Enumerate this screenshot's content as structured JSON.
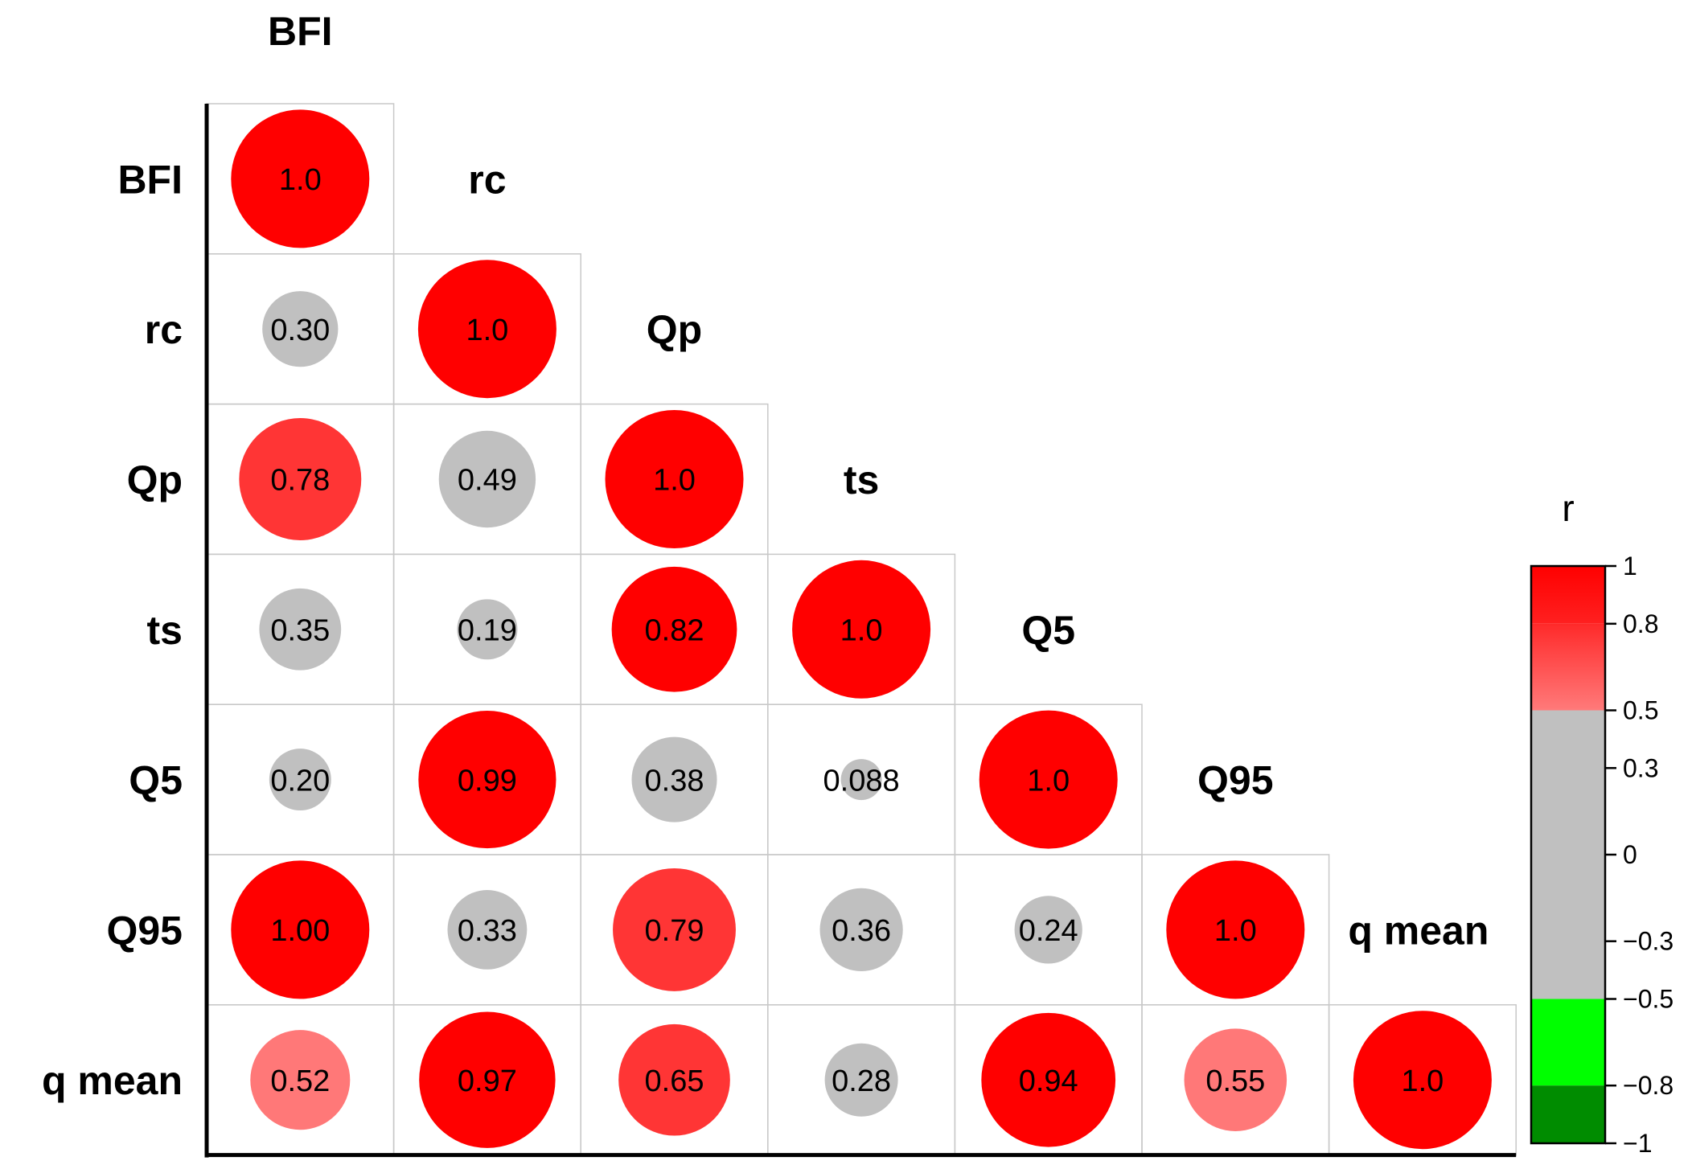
{
  "chart_data": {
    "type": "heatmap",
    "variables": [
      "BFI",
      "rc",
      "Qp",
      "ts",
      "Q5",
      "Q95",
      "q mean"
    ],
    "matrix_labels": [
      [
        "1.0"
      ],
      [
        "0.30",
        "1.0"
      ],
      [
        "0.78",
        "0.49",
        "1.0"
      ],
      [
        "0.35",
        "0.19",
        "0.82",
        "1.0"
      ],
      [
        "0.20",
        "0.99",
        "0.38",
        "0.088",
        "1.0"
      ],
      [
        "1.00",
        "0.33",
        "0.79",
        "0.36",
        "0.24",
        "1.0"
      ],
      [
        "0.52",
        "0.97",
        "0.65",
        "0.28",
        "0.94",
        "0.55",
        "1.0"
      ]
    ],
    "matrix_values": [
      [
        1.0
      ],
      [
        0.3,
        1.0
      ],
      [
        0.78,
        0.49,
        1.0
      ],
      [
        0.35,
        0.19,
        0.82,
        1.0
      ],
      [
        0.2,
        0.99,
        0.38,
        0.088,
        1.0
      ],
      [
        1.0,
        0.33,
        0.79,
        0.36,
        0.24,
        1.0
      ],
      [
        0.52,
        0.97,
        0.65,
        0.28,
        0.94,
        0.55,
        1.0
      ]
    ],
    "layout": "lower-triangle",
    "marker": "circle",
    "legend": {
      "title": "r",
      "placement": "right",
      "range": [
        -1,
        1
      ],
      "bands": [
        {
          "from": 0.8,
          "to": 1.0,
          "color": "#ff0000",
          "color_end": "#ff2020"
        },
        {
          "from": 0.5,
          "to": 0.8,
          "color": "#ff2a2a",
          "color_end": "#ff7a7a"
        },
        {
          "from": -0.5,
          "to": 0.5,
          "color": "#c0c0c0",
          "color_end": "#c0c0c0"
        },
        {
          "from": -0.8,
          "to": -0.5,
          "color": "#00ff00",
          "color_end": "#00ff00"
        },
        {
          "from": -1.0,
          "to": -0.8,
          "color": "#008c00",
          "color_end": "#008c00"
        }
      ],
      "ticks": [
        {
          "value": 1,
          "label": "1"
        },
        {
          "value": 0.8,
          "label": "0.8"
        },
        {
          "value": 0.5,
          "label": "0.5"
        },
        {
          "value": 0.3,
          "label": "0.3"
        },
        {
          "value": 0,
          "label": "0"
        },
        {
          "value": -0.3,
          "label": "−0.3"
        },
        {
          "value": -0.5,
          "label": "−0.5"
        },
        {
          "value": -0.8,
          "label": "−0.8"
        },
        {
          "value": -1,
          "label": "−1"
        }
      ]
    },
    "colors": {
      "strong_positive": "#ff0000",
      "moderate_positive_high": "#ff3535",
      "moderate_positive_low": "#ff7878",
      "neutral": "#c0c0c0",
      "moderate_negative": "#00ff00",
      "strong_negative": "#008c00",
      "grid": "#c8c8c8",
      "axis": "#000000"
    }
  }
}
